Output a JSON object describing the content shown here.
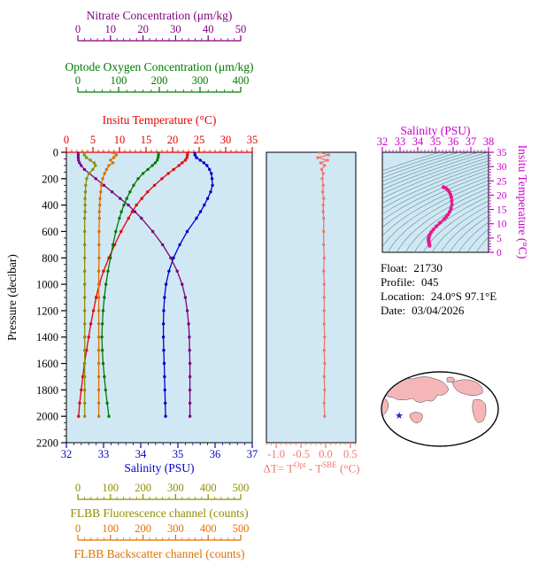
{
  "colors": {
    "panel_bg": "#cfe8f4",
    "frame": "#000000",
    "nitrate": "#7d007d",
    "oxygen": "#007a00",
    "temperature": "#e80000",
    "pressure": "#000000",
    "salinity": "#0000cc",
    "fluorescence": "#8f8f00",
    "backscatter": "#e07000",
    "delta_t": "#f07870",
    "ts_axis": "#cc00cc",
    "ts_curve": "#e6198c",
    "contour": "#3f6f7a",
    "land": "#f5b6ba",
    "star": "#2222dd"
  },
  "info": {
    "rows": [
      {
        "label": "Float:",
        "value": "21730"
      },
      {
        "label": "Profile:",
        "value": "045"
      },
      {
        "label": "Location:",
        "value": "24.0°S  97.1°E"
      },
      {
        "label": "Date:",
        "value": "03/04/2026"
      }
    ]
  },
  "chart_data": [
    {
      "id": "profiles",
      "type": "line",
      "y_axis": {
        "label": "Pressure (decibar)",
        "range": [
          0,
          2200
        ],
        "ticks": [
          0,
          200,
          400,
          600,
          800,
          1000,
          1200,
          1400,
          1600,
          1800,
          2000,
          2200
        ]
      },
      "x_axes": {
        "nitrate": {
          "label": "Nitrate Concentration (μm/kg)",
          "range": [
            0,
            50
          ],
          "ticks": [
            0,
            10,
            20,
            30,
            40,
            50
          ]
        },
        "oxygen": {
          "label": "Optode Oxygen Concentration (μm/kg)",
          "range": [
            0,
            400
          ],
          "ticks": [
            0,
            100,
            200,
            300,
            400
          ]
        },
        "temperature": {
          "label": "Insitu Temperature (°C)",
          "range": [
            0,
            35
          ],
          "ticks": [
            0,
            5,
            10,
            15,
            20,
            25,
            30,
            35
          ]
        },
        "salinity": {
          "label": "Salinity (PSU)",
          "range": [
            32,
            37
          ],
          "ticks": [
            32,
            33,
            34,
            35,
            36,
            37
          ]
        },
        "fluorescence": {
          "label": "FLBB Fluorescence channel (counts)",
          "range": [
            0,
            500
          ],
          "ticks": [
            0,
            100,
            200,
            300,
            400,
            500
          ]
        },
        "backscatter": {
          "label": "FLBB Backscatter channel (counts)",
          "range": [
            0,
            500
          ],
          "ticks": [
            0,
            100,
            200,
            300,
            400,
            500
          ]
        }
      },
      "pressure": [
        0,
        20,
        40,
        60,
        80,
        100,
        130,
        160,
        200,
        250,
        300,
        350,
        400,
        450,
        500,
        600,
        700,
        800,
        900,
        1000,
        1100,
        1200,
        1300,
        1400,
        1500,
        1600,
        1700,
        1800,
        1900,
        2000
      ],
      "series": [
        {
          "name": "salinity",
          "values": [
            35.45,
            35.46,
            35.5,
            35.6,
            35.7,
            35.78,
            35.85,
            35.9,
            35.92,
            35.93,
            35.88,
            35.8,
            35.71,
            35.61,
            35.5,
            35.25,
            35.05,
            34.88,
            34.76,
            34.68,
            34.64,
            34.62,
            34.61,
            34.61,
            34.62,
            34.63,
            34.64,
            34.65,
            34.66,
            34.67
          ]
        },
        {
          "name": "temperature",
          "values": [
            22.8,
            22.8,
            22.7,
            22.4,
            21.8,
            21.2,
            20.2,
            19.2,
            18.0,
            16.6,
            15.3,
            14.2,
            13.2,
            12.4,
            11.7,
            10.3,
            9.1,
            8.0,
            7.0,
            6.2,
            5.6,
            5.1,
            4.6,
            4.2,
            3.8,
            3.4,
            3.1,
            2.8,
            2.5,
            2.3
          ]
        },
        {
          "name": "nitrate",
          "values": [
            0.1,
            0.1,
            0.1,
            0.2,
            0.5,
            1.0,
            2.0,
            3.5,
            5.5,
            8.0,
            10.5,
            13.0,
            15.5,
            17.5,
            19.5,
            23.0,
            26.0,
            28.5,
            30.5,
            32.0,
            33.0,
            33.6,
            34.0,
            34.2,
            34.3,
            34.4,
            34.4,
            34.4,
            34.4,
            34.4
          ]
        },
        {
          "name": "oxygen",
          "values": [
            198,
            198,
            197,
            195,
            190,
            183,
            172,
            160,
            148,
            137,
            128,
            120,
            113,
            107,
            102,
            93,
            86,
            80,
            74,
            69,
            65,
            62,
            60,
            59,
            60,
            62,
            65,
            68,
            72,
            76
          ]
        },
        {
          "name": "fluorescence",
          "values": [
            18,
            20,
            26,
            38,
            50,
            54,
            46,
            34,
            27,
            24,
            23,
            22,
            22,
            22,
            21,
            21,
            21,
            21,
            21,
            21,
            21,
            21,
            21,
            21,
            21,
            21,
            21,
            21,
            21,
            21
          ]
        },
        {
          "name": "backscatter",
          "values": [
            105,
            118,
            110,
            100,
            108,
            95,
            88,
            82,
            76,
            72,
            70,
            68,
            67,
            66,
            66,
            65,
            65,
            65,
            64,
            64,
            64,
            64,
            64,
            64,
            64,
            64,
            64,
            64,
            64,
            64
          ]
        }
      ]
    },
    {
      "id": "delta_t",
      "type": "line",
      "x_axis": {
        "label_parts": {
          "prefix": "ΔT= T",
          "sup1": "Opt",
          "mid": " - T",
          "sup2": "SBE",
          "suffix": " (°C)"
        },
        "range": [
          -1.2,
          0.61
        ],
        "ticks": [
          -1.0,
          -0.5,
          0.0,
          0.5
        ],
        "tick_labels": [
          "-1.0",
          "-0.5",
          "0.0",
          "0.5"
        ]
      },
      "pressure": [
        0,
        20,
        40,
        60,
        80,
        100,
        130,
        160,
        200,
        250,
        300,
        350,
        400,
        450,
        500,
        600,
        700,
        800,
        900,
        1000,
        1100,
        1200,
        1300,
        1400,
        1500,
        1600,
        1700,
        1800,
        1900,
        2000
      ],
      "values": [
        -0.12,
        0.06,
        -0.16,
        0.04,
        -0.1,
        -0.02,
        -0.08,
        -0.05,
        -0.07,
        -0.05,
        -0.06,
        -0.04,
        -0.05,
        -0.05,
        -0.04,
        -0.04,
        -0.04,
        -0.03,
        -0.04,
        -0.03,
        -0.03,
        -0.03,
        -0.03,
        -0.02,
        -0.03,
        -0.02,
        -0.03,
        -0.02,
        -0.03,
        -0.02
      ]
    },
    {
      "id": "ts_diagram",
      "type": "line",
      "x_axis": {
        "label": "Salinity (PSU)",
        "range": [
          32,
          38
        ],
        "ticks": [
          32,
          33,
          34,
          35,
          36,
          37,
          38
        ]
      },
      "y_axis": {
        "label": "Insitu Temperature (°C)",
        "range": [
          0,
          35
        ],
        "ticks": [
          0,
          5,
          10,
          15,
          20,
          25,
          30,
          35
        ]
      },
      "isopycnals": [
        20,
        20.4,
        20.8,
        21.2,
        21.6,
        22,
        22.4,
        22.8,
        23.2,
        23.6,
        24,
        24.4,
        24.8,
        25.2,
        25.6,
        26,
        26.4,
        26.8,
        27.2,
        27.6,
        28,
        28.4,
        28.8,
        29.2,
        29.6,
        30
      ],
      "salinity": [
        35.45,
        35.46,
        35.5,
        35.6,
        35.7,
        35.78,
        35.85,
        35.9,
        35.92,
        35.93,
        35.88,
        35.8,
        35.71,
        35.61,
        35.5,
        35.25,
        35.05,
        34.88,
        34.76,
        34.68,
        34.64,
        34.62,
        34.61,
        34.61,
        34.62,
        34.63,
        34.64,
        34.65,
        34.66,
        34.67
      ],
      "temperature": [
        22.8,
        22.8,
        22.7,
        22.4,
        21.8,
        21.2,
        20.2,
        19.2,
        18.0,
        16.6,
        15.3,
        14.2,
        13.2,
        12.4,
        11.7,
        10.3,
        9.1,
        8.0,
        7.0,
        6.2,
        5.6,
        5.1,
        4.6,
        4.2,
        3.8,
        3.4,
        3.1,
        2.8,
        2.5,
        2.3
      ]
    }
  ]
}
